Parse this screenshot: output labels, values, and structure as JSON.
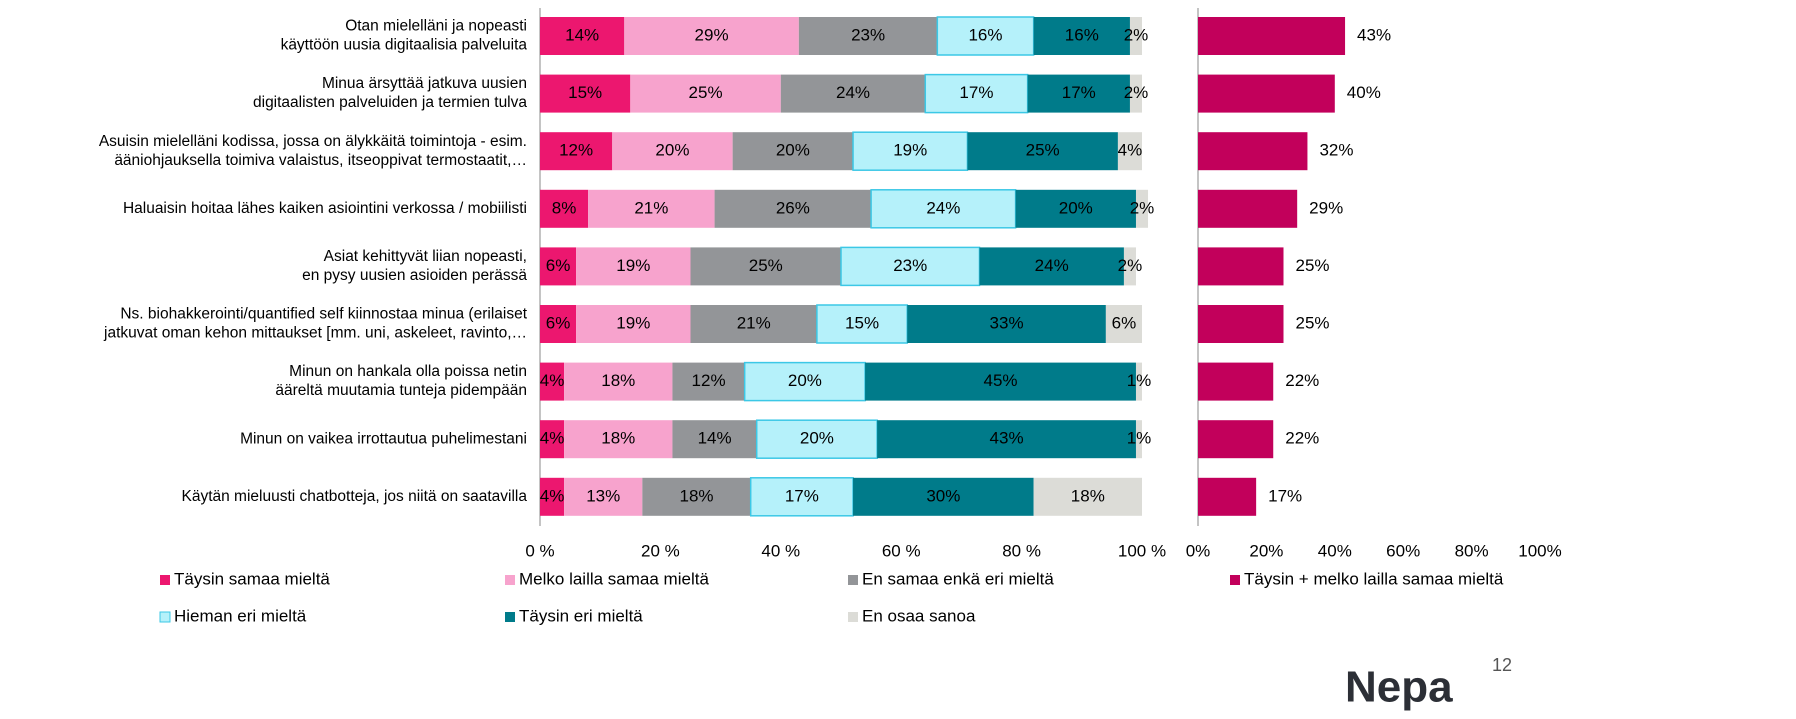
{
  "chart_data": [
    {
      "type": "stacked_bar",
      "categories": [
        [
          "Otan mielelläni ja nopeasti",
          "käyttöön uusia digitaalisia palveluita"
        ],
        [
          "Minua ärsyttää jatkuva uusien",
          "digitaalisten palveluiden ja termien tulva"
        ],
        [
          "Asuisin mielelläni kodissa, jossa on älykkäitä toimintoja - esim.",
          "ääniohjauksella toimiva valaistus, itseoppivat termostaatit,…"
        ],
        [
          "Haluaisin hoitaa lähes kaiken asiointini verkossa / mobiilisti"
        ],
        [
          "Asiat kehittyvät liian nopeasti,",
          "en pysy uusien asioiden perässä"
        ],
        [
          "Ns. biohakkerointi/quantified self kiinnostaa minua (erilaiset",
          "jatkuvat oman kehon mittaukset [mm. uni, askeleet, ravinto,…"
        ],
        [
          "Minun on hankala olla poissa netin",
          "ääreltä muutamia tunteja pidempään"
        ],
        [
          "Minun on vaikea irrottautua puhelimestani"
        ],
        [
          "Käytän mieluusti chatbotteja, jos niitä on saatavilla"
        ]
      ],
      "series": [
        {
          "name": "Täysin samaa mieltä",
          "color": "#ec176f",
          "values": [
            14,
            15,
            12,
            8,
            6,
            6,
            4,
            4,
            4
          ],
          "value_labels": [
            "14%",
            "15%",
            "12%",
            "8%",
            "6%",
            "6%",
            "4%",
            "4%",
            "4%"
          ]
        },
        {
          "name": "Melko lailla samaa mieltä",
          "color": "#f7a3cd",
          "values": [
            29,
            25,
            20,
            21,
            19,
            19,
            18,
            18,
            13
          ],
          "value_labels": [
            "29%",
            "25%",
            "20%",
            "21%",
            "19%",
            "19%",
            "18%",
            "18%",
            "13%"
          ]
        },
        {
          "name": "En samaa enkä eri mieltä",
          "color": "#939598",
          "values": [
            23,
            24,
            20,
            26,
            25,
            21,
            12,
            14,
            18
          ],
          "value_labels": [
            "23%",
            "24%",
            "20%",
            "26%",
            "25%",
            "21%",
            "12%",
            "14%",
            "18%"
          ]
        },
        {
          "name": "Hieman eri mieltä",
          "color": "#b5f1fa",
          "values": [
            16,
            17,
            19,
            24,
            23,
            15,
            20,
            20,
            17
          ],
          "value_labels": [
            "16%",
            "17%",
            "19%",
            "24%",
            "23%",
            "15%",
            "20%",
            "20%",
            "17%"
          ]
        },
        {
          "name": "Täysin eri mieltä",
          "color": "#007b8a",
          "values": [
            16,
            17,
            25,
            20,
            24,
            33,
            45,
            43,
            30
          ],
          "value_labels": [
            "16%",
            "17%",
            "25%",
            "20%",
            "24%",
            "33%",
            "45%",
            "43%",
            "30%"
          ]
        },
        {
          "name": "En osaa sanoa",
          "color": "#dcdcd7",
          "values": [
            2,
            2,
            4,
            2,
            2,
            6,
            1,
            1,
            18
          ],
          "value_labels": [
            "2%",
            "2%",
            "4%",
            "2%",
            "2%",
            "6%",
            "1%",
            "1%",
            "18%"
          ]
        }
      ],
      "xlim": [
        0,
        100
      ],
      "xticks": [
        {
          "value": 0,
          "label": "0 %"
        },
        {
          "value": 20,
          "label": "20 %"
        },
        {
          "value": 40,
          "label": "40 %"
        },
        {
          "value": 60,
          "label": "60 %"
        },
        {
          "value": 80,
          "label": "80 %"
        },
        {
          "value": 100,
          "label": "100 %"
        }
      ]
    },
    {
      "type": "bar",
      "series": [
        {
          "name": "Täysin + melko lailla samaa mieltä",
          "color": "#c2005b",
          "values": [
            43,
            40,
            32,
            29,
            25,
            25,
            22,
            22,
            17
          ],
          "value_labels": [
            "43%",
            "40%",
            "32%",
            "29%",
            "25%",
            "25%",
            "22%",
            "22%",
            "17%"
          ]
        }
      ],
      "xlim": [
        0,
        100
      ],
      "xticks": [
        {
          "value": 0,
          "label": "0%"
        },
        {
          "value": 20,
          "label": "20%"
        },
        {
          "value": 40,
          "label": "40%"
        },
        {
          "value": 60,
          "label": "60%"
        },
        {
          "value": 80,
          "label": "80%"
        },
        {
          "value": 100,
          "label": "100%"
        }
      ]
    }
  ],
  "logo": "Nepa",
  "page_number": "12"
}
